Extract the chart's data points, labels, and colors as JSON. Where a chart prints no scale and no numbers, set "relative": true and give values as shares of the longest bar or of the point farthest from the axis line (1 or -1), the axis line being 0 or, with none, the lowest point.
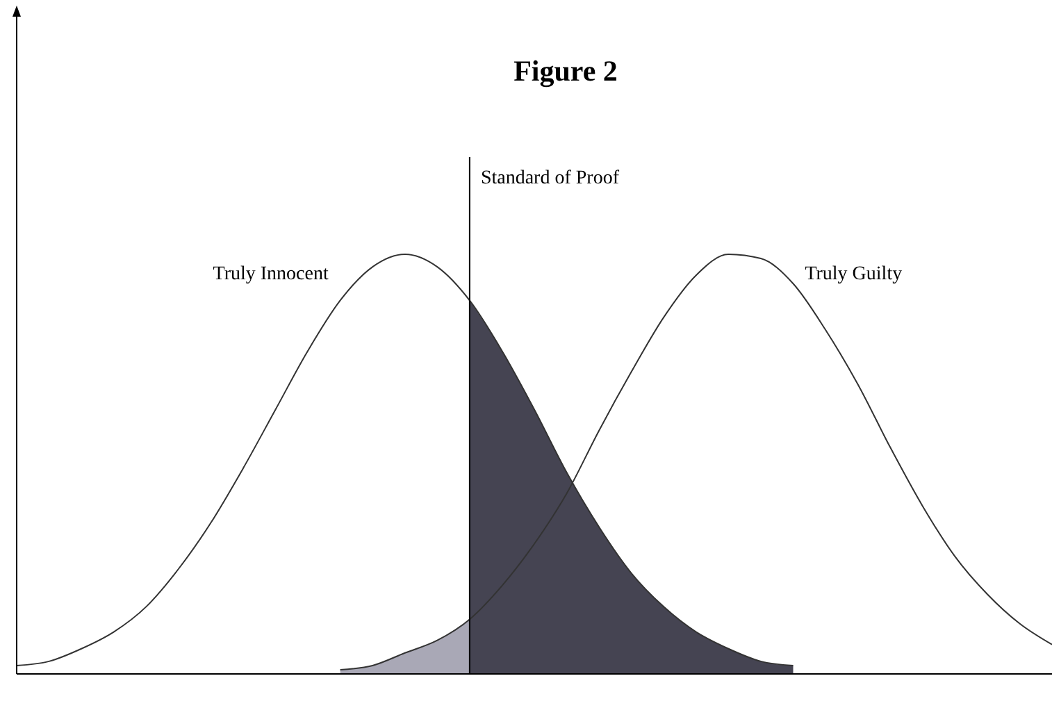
{
  "chart_data": {
    "type": "line",
    "relative": true,
    "title": "Figure 2",
    "legend": false,
    "categories": [
      null,
      null,
      null,
      null,
      null,
      null,
      null,
      null,
      null,
      null,
      null,
      null,
      null,
      null,
      null,
      null,
      null,
      null,
      null,
      null,
      null,
      null,
      null,
      null,
      null,
      null,
      null,
      null,
      null,
      null,
      null,
      null,
      null
    ],
    "series": [
      {
        "type": "area",
        "color": "#a9a8b6",
        "values": [
          null,
          null,
          null,
          null,
          null,
          null,
          null,
          null,
          null,
          null,
          0.01,
          0.02,
          0.05,
          0.08,
          0.13,
          null,
          null,
          null,
          null,
          null,
          null,
          null,
          null,
          null,
          null,
          null,
          null,
          null,
          null,
          null,
          null,
          null,
          null
        ]
      },
      {
        "type": "area",
        "color": "#454452",
        "values": [
          null,
          null,
          null,
          null,
          null,
          null,
          null,
          null,
          null,
          null,
          null,
          null,
          null,
          null,
          0.89,
          0.77,
          0.63,
          0.48,
          0.35,
          0.24,
          0.16,
          0.1,
          0.06,
          0.03,
          0.02,
          null,
          null,
          null,
          null,
          null,
          null,
          null,
          null
        ]
      },
      {
        "name": "Truly Innocent",
        "color": "#333333",
        "values": [
          0.02,
          0.03,
          0.06,
          0.1,
          0.16,
          0.25,
          0.36,
          0.49,
          0.63,
          0.77,
          0.89,
          0.97,
          1,
          0.97,
          0.89,
          0.77,
          0.63,
          0.48,
          0.35,
          0.24,
          0.16,
          0.1,
          0.06,
          0.03,
          0.02,
          null,
          null,
          null,
          null,
          null,
          null,
          null,
          null
        ]
      },
      {
        "name": "Truly Guilty",
        "color": "#333333",
        "values": [
          null,
          null,
          null,
          null,
          null,
          null,
          null,
          null,
          null,
          null,
          0.01,
          0.02,
          0.05,
          0.08,
          0.13,
          0.21,
          0.31,
          0.43,
          0.58,
          0.72,
          0.85,
          0.95,
          1,
          0.99,
          0.93,
          0.82,
          0.69,
          0.54,
          0.4,
          0.28,
          0.19,
          0.12,
          0.07
        ]
      }
    ],
    "annotations": [
      "Standard of Proof"
    ]
  }
}
